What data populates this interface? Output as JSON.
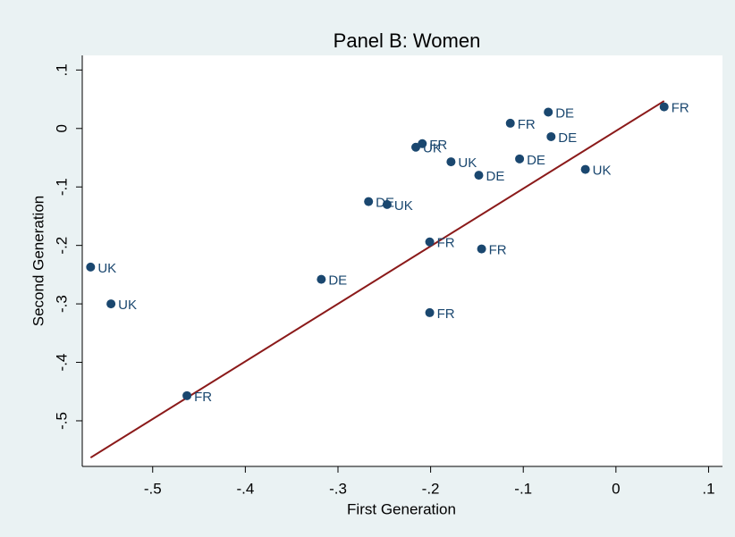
{
  "chart_data": {
    "type": "scatter",
    "title": "Panel B: Women",
    "xlabel": "First Generation",
    "ylabel": "Second Generation",
    "xlim": [
      -0.576,
      0.115
    ],
    "ylim": [
      -0.578,
      0.125
    ],
    "xticks": [
      {
        "value": -0.5,
        "label": "-.5"
      },
      {
        "value": -0.4,
        "label": "-.4"
      },
      {
        "value": -0.3,
        "label": "-.3"
      },
      {
        "value": -0.2,
        "label": "-.2"
      },
      {
        "value": -0.1,
        "label": "-.1"
      },
      0,
      {
        "value": 0.1,
        "label": ".1"
      }
    ],
    "yticks": [
      {
        "value": 0.1,
        "label": ".1"
      },
      0,
      {
        "value": -0.1,
        "label": "-.1"
      },
      {
        "value": -0.2,
        "label": "-.2"
      },
      {
        "value": -0.3,
        "label": "-.3"
      },
      {
        "value": -0.4,
        "label": "-.4"
      },
      {
        "value": -0.5,
        "label": "-.5"
      }
    ],
    "grid": false,
    "series": [
      {
        "color": "#1a476f",
        "x": [
          -0.567,
          -0.545,
          -0.463,
          -0.318,
          -0.267,
          -0.247,
          -0.216,
          -0.209,
          -0.178,
          -0.201,
          -0.201,
          -0.148,
          -0.145,
          -0.114,
          -0.104,
          -0.073,
          -0.07,
          -0.033,
          0.052
        ],
        "values": [
          -0.237,
          -0.3,
          -0.457,
          -0.258,
          -0.125,
          -0.13,
          -0.032,
          -0.026,
          -0.057,
          -0.194,
          -0.315,
          -0.08,
          -0.206,
          0.009,
          -0.052,
          0.028,
          -0.014,
          -0.07,
          0.037
        ],
        "labels": [
          "UK",
          "UK",
          "FR",
          "DE",
          "DE",
          "UK",
          "UK",
          "FR",
          "UK",
          "FR",
          "FR",
          "DE",
          "FR",
          "FR",
          "DE",
          "DE",
          "DE",
          "UK",
          "FR"
        ]
      }
    ],
    "fit_line": {
      "color": "#8b1a1a",
      "x": [
        -0.567,
        0.052
      ],
      "y": [
        -0.563,
        0.047
      ]
    }
  }
}
